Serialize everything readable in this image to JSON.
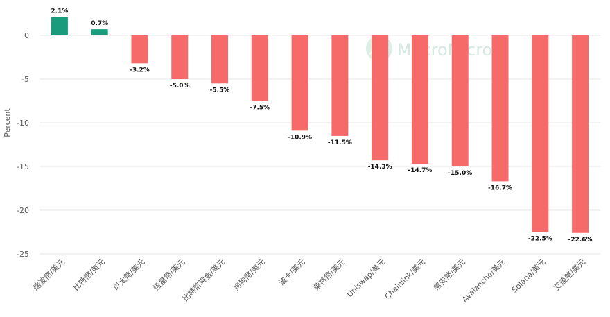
{
  "chart_data": {
    "type": "bar",
    "title": "",
    "xlabel": "",
    "ylabel": "Percent",
    "ylim": [
      -25,
      3.5
    ],
    "yticks": [
      0,
      -5,
      -10,
      -15,
      -20,
      -25
    ],
    "grid": true,
    "legend": "none",
    "categories": [
      "瑞波幣/美元",
      "比特幣/美元",
      "以太幣/美元",
      "恆星幣/美元",
      "比特幣現金/美元",
      "狗狗幣/美元",
      "波卡/美元",
      "萊特幣/美元",
      "Uniswap/美元",
      "Chainlink/美元",
      "幣安幣/美元",
      "Avalanche/美元",
      "Solana/美元",
      "艾達幣/美元"
    ],
    "values": [
      2.1,
      0.7,
      -3.2,
      -5.0,
      -5.5,
      -7.5,
      -10.9,
      -11.5,
      -14.3,
      -14.7,
      -15.0,
      -16.7,
      -22.5,
      -22.6
    ],
    "data_labels": [
      "2.1%",
      "0.7%",
      "-3.2%",
      "-5.0%",
      "-5.5%",
      "-7.5%",
      "-10.9%",
      "-11.5%",
      "-14.3%",
      "-14.7%",
      "-15.0%",
      "-16.7%",
      "-22.5%",
      "-22.6%"
    ],
    "colors": {
      "positive": "#1a9b7c",
      "negative": "#f76a6a"
    }
  },
  "watermark": {
    "text": "MacroMicro",
    "color": "#d4e9e2"
  }
}
